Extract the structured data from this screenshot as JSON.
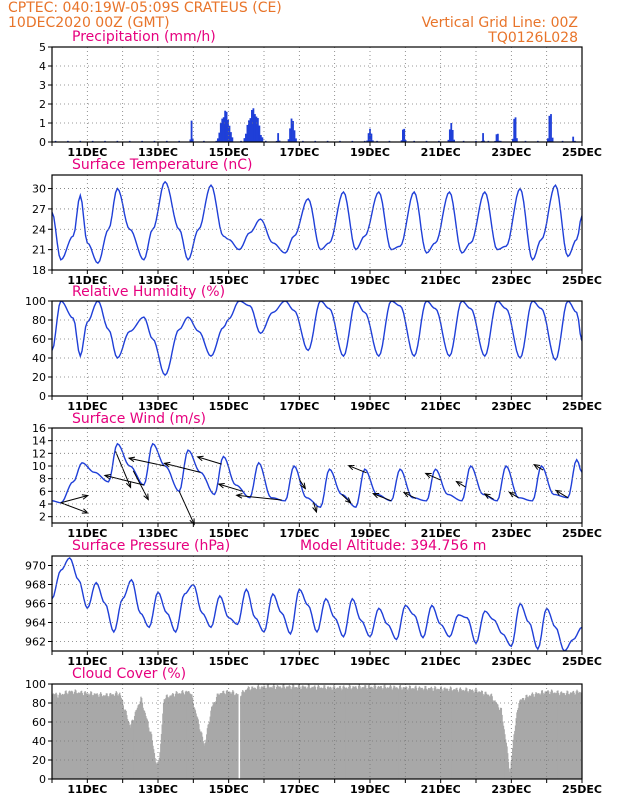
{
  "header": {
    "line1": "CPTEC:   040:19W-05:09S   CRATEUS (CE)",
    "line2": "10DEC2020 00Z (GMT)",
    "right1": "Vertical Grid Line: 00Z",
    "right2": "TQ0126L028"
  },
  "colors": {
    "header": "#e8742a",
    "title": "#e6007e",
    "series": "#1f3fd8",
    "cloud": "#a8a8a8",
    "arrow": "#000000",
    "grid": "#777777"
  },
  "chart_data": [
    {
      "type": "bar",
      "title": "Precipitation (mm/h)",
      "ylim": [
        0,
        5
      ],
      "yticks": [
        0,
        1,
        2,
        3,
        4,
        5
      ],
      "xrange_days": [
        10,
        25
      ],
      "xtick_labels": [
        "11DEC",
        "13DEC",
        "15DEC",
        "17DEC",
        "19DEC",
        "21DEC",
        "23DEC",
        "25DEC"
      ],
      "grid": true,
      "events": [
        {
          "day": 13.95,
          "width": 0.1,
          "peak": 1.2
        },
        {
          "day": 14.9,
          "width": 0.45,
          "peak": 1.7
        },
        {
          "day": 15.7,
          "width": 0.55,
          "peak": 1.8
        },
        {
          "day": 16.4,
          "width": 0.12,
          "peak": 0.5
        },
        {
          "day": 16.8,
          "width": 0.25,
          "peak": 1.3
        },
        {
          "day": 19.0,
          "width": 0.2,
          "peak": 0.7
        },
        {
          "day": 19.95,
          "width": 0.15,
          "peak": 0.8
        },
        {
          "day": 21.3,
          "width": 0.2,
          "peak": 1.0
        },
        {
          "day": 22.2,
          "width": 0.08,
          "peak": 0.5
        },
        {
          "day": 22.6,
          "width": 0.15,
          "peak": 0.5
        },
        {
          "day": 23.1,
          "width": 0.15,
          "peak": 1.5
        },
        {
          "day": 24.1,
          "width": 0.18,
          "peak": 1.7
        },
        {
          "day": 24.75,
          "width": 0.05,
          "peak": 0.3
        }
      ]
    },
    {
      "type": "line",
      "title": "Surface Temperature (nC)",
      "ylim": [
        18,
        32
      ],
      "yticks": [
        18,
        21,
        24,
        27,
        30
      ],
      "xrange_days": [
        10,
        25
      ],
      "xtick_labels": [
        "11DEC",
        "13DEC",
        "15DEC",
        "17DEC",
        "19DEC",
        "21DEC",
        "23DEC",
        "25DEC"
      ],
      "grid": true,
      "series": [
        {
          "x": [
            10,
            10.25,
            10.6,
            10.8,
            11.0,
            11.3,
            11.6,
            11.85,
            12.2,
            12.6,
            12.85,
            13.2,
            13.6,
            13.85,
            14.15,
            14.5,
            14.85,
            15.0,
            15.3,
            15.6,
            15.9,
            16.25,
            16.6,
            16.85,
            17.25,
            17.6,
            17.85,
            18.25,
            18.6,
            18.85,
            19.25,
            19.6,
            19.85,
            20.25,
            20.6,
            20.85,
            21.25,
            21.6,
            21.85,
            22.25,
            22.6,
            22.85,
            23.25,
            23.6,
            23.85,
            24.25,
            24.6,
            24.85,
            25.0
          ],
          "y": [
            26.5,
            19.5,
            23,
            29,
            22,
            19,
            24,
            30,
            24,
            19.5,
            24,
            31,
            24,
            19.5,
            24,
            30.5,
            23,
            22.5,
            21,
            23.5,
            25.5,
            22,
            20.5,
            23,
            28.5,
            21,
            22,
            29.5,
            21,
            23,
            29.5,
            21,
            21.5,
            29.5,
            20.5,
            22,
            29.5,
            20.5,
            22,
            29.5,
            21,
            21.5,
            30,
            19.5,
            22.5,
            30.5,
            20,
            22.5,
            26
          ]
        }
      ]
    },
    {
      "type": "line",
      "title": "Relative Humidity (%)",
      "ylim": [
        0,
        100
      ],
      "yticks": [
        0,
        20,
        40,
        60,
        80,
        100
      ],
      "xrange_days": [
        10,
        25
      ],
      "xtick_labels": [
        "11DEC",
        "13DEC",
        "15DEC",
        "17DEC",
        "19DEC",
        "21DEC",
        "23DEC",
        "25DEC"
      ],
      "grid": true,
      "series": [
        {
          "x": [
            10,
            10.25,
            10.6,
            10.8,
            11.0,
            11.3,
            11.6,
            11.85,
            12.2,
            12.6,
            12.85,
            13.2,
            13.6,
            13.85,
            14.15,
            14.5,
            14.85,
            15.0,
            15.3,
            15.6,
            15.9,
            16.25,
            16.6,
            16.85,
            17.25,
            17.6,
            17.85,
            18.25,
            18.6,
            18.85,
            19.25,
            19.6,
            19.85,
            20.25,
            20.6,
            20.85,
            21.25,
            21.6,
            21.85,
            22.25,
            22.6,
            22.85,
            23.25,
            23.6,
            23.85,
            24.25,
            24.6,
            24.85,
            25.0
          ],
          "y": [
            48,
            100,
            82,
            42,
            78,
            100,
            70,
            40,
            68,
            83,
            60,
            22,
            70,
            83,
            68,
            42,
            72,
            81,
            100,
            95,
            66,
            88,
            100,
            90,
            48,
            100,
            92,
            42,
            100,
            88,
            42,
            100,
            95,
            42,
            100,
            92,
            42,
            100,
            92,
            42,
            100,
            92,
            40,
            100,
            92,
            38,
            100,
            88,
            58
          ]
        }
      ]
    },
    {
      "type": "line",
      "title": "Surface Wind (m/s)",
      "ylim": [
        1,
        16
      ],
      "yticks": [
        2,
        4,
        6,
        8,
        10,
        12,
        14,
        16
      ],
      "xrange_days": [
        10,
        25
      ],
      "xtick_labels": [
        "11DEC",
        "13DEC",
        "15DEC",
        "17DEC",
        "19DEC",
        "21DEC",
        "23DEC",
        "25DEC"
      ],
      "grid": true,
      "series": [
        {
          "x": [
            10,
            10.25,
            10.6,
            10.85,
            11.2,
            11.6,
            11.85,
            12.2,
            12.6,
            12.85,
            13.2,
            13.6,
            13.85,
            14.2,
            14.6,
            14.85,
            15.2,
            15.6,
            15.85,
            16.2,
            16.6,
            16.85,
            17.2,
            17.6,
            17.85,
            18.2,
            18.6,
            18.85,
            19.2,
            19.6,
            19.85,
            20.2,
            20.6,
            20.85,
            21.2,
            21.6,
            21.85,
            22.2,
            22.6,
            22.85,
            23.2,
            23.6,
            23.85,
            24.2,
            24.6,
            24.85,
            25.0
          ],
          "y": [
            4.5,
            4.2,
            7.5,
            10.5,
            9,
            7.5,
            13.5,
            10,
            7,
            13.5,
            10,
            6,
            12.5,
            9,
            5.5,
            11.5,
            7,
            5,
            10.5,
            5,
            4.5,
            10,
            5,
            3.5,
            9.5,
            5.5,
            3.5,
            9.5,
            5.5,
            4.5,
            9.5,
            5,
            4.5,
            9.5,
            5.5,
            4.5,
            10,
            5.5,
            4.5,
            10,
            5,
            4.5,
            10,
            5.5,
            5,
            11,
            9
          ]
        }
      ],
      "wind_vectors": [
        {
          "day": 10.25,
          "dx": 0.9,
          "dy": 1.2
        },
        {
          "day": 10.25,
          "dx": 0.9,
          "dy": -1.7
        },
        {
          "day": 11.8,
          "dx": 0.5,
          "dy": -6
        },
        {
          "day": 12.3,
          "dx": 0.5,
          "dy": -4.8
        },
        {
          "day": 12.6,
          "dx": -1.3,
          "dy": 1.6
        },
        {
          "day": 13.2,
          "dx": -1.2,
          "dy": 1.3
        },
        {
          "day": 13.6,
          "dx": 0.5,
          "dy": -5.5
        },
        {
          "day": 14.2,
          "dx": -1.2,
          "dy": 1.5
        },
        {
          "day": 14.8,
          "dx": -0.8,
          "dy": 1.2
        },
        {
          "day": 15.4,
          "dx": -0.8,
          "dy": 1.2
        },
        {
          "day": 16.5,
          "dx": -1.5,
          "dy": 0.8
        },
        {
          "day": 17.0,
          "dx": 0.2,
          "dy": -1.5
        },
        {
          "day": 17.4,
          "dx": 0.1,
          "dy": -1.6
        },
        {
          "day": 18.2,
          "dx": 0.3,
          "dy": -1.4
        },
        {
          "day": 18.9,
          "dx": -0.6,
          "dy": 1.2
        },
        {
          "day": 19.6,
          "dx": -0.6,
          "dy": 1.2
        },
        {
          "day": 20.3,
          "dx": -0.4,
          "dy": 1.0
        },
        {
          "day": 21.0,
          "dx": -0.5,
          "dy": 1.1
        },
        {
          "day": 21.7,
          "dx": -0.3,
          "dy": 0.9
        },
        {
          "day": 22.5,
          "dx": -0.3,
          "dy": 0.9
        },
        {
          "day": 23.2,
          "dx": -0.3,
          "dy": 0.9
        },
        {
          "day": 23.9,
          "dx": -0.3,
          "dy": 0.9
        },
        {
          "day": 24.6,
          "dx": -0.4,
          "dy": 1.2
        }
      ]
    },
    {
      "type": "line",
      "title": "Surface Pressure (hPa)",
      "subtitle": "Model Altitude: 394.756  m",
      "ylim": [
        961,
        971
      ],
      "yticks": [
        962,
        964,
        966,
        968,
        970
      ],
      "xrange_days": [
        10,
        25
      ],
      "xtick_labels": [
        "11DEC",
        "13DEC",
        "15DEC",
        "17DEC",
        "19DEC",
        "21DEC",
        "23DEC",
        "25DEC"
      ],
      "grid": true,
      "series": [
        {
          "x": [
            10,
            10.25,
            10.5,
            10.75,
            11.0,
            11.25,
            11.5,
            11.75,
            12.0,
            12.25,
            12.5,
            12.75,
            13.0,
            13.25,
            13.5,
            13.75,
            14.0,
            14.25,
            14.5,
            14.75,
            15.0,
            15.25,
            15.5,
            15.75,
            16.0,
            16.25,
            16.5,
            16.75,
            17.0,
            17.25,
            17.5,
            17.75,
            18.0,
            18.25,
            18.5,
            18.75,
            19.0,
            19.25,
            19.5,
            19.75,
            20.0,
            20.25,
            20.5,
            20.75,
            21.0,
            21.25,
            21.5,
            21.75,
            22.0,
            22.25,
            22.5,
            22.75,
            23.0,
            23.25,
            23.5,
            23.75,
            24.0,
            24.25,
            24.5,
            24.75,
            25.0
          ],
          "y": [
            966.5,
            969.5,
            970.8,
            968.5,
            965.5,
            968.2,
            966,
            963,
            966.5,
            968.5,
            965,
            963.5,
            967.2,
            965,
            963,
            967,
            968,
            965,
            963.5,
            966.8,
            964.5,
            963.8,
            967.5,
            964.5,
            963,
            967,
            965,
            962.8,
            967.5,
            965.8,
            963,
            966.5,
            964.5,
            962.5,
            966.5,
            964.2,
            962.5,
            965.5,
            963.8,
            962.2,
            965.8,
            964.8,
            962.4,
            965.8,
            963.8,
            962.5,
            964.8,
            964.5,
            961.8,
            965.2,
            964.3,
            962.8,
            961.5,
            966,
            964,
            961.2,
            965.5,
            963.5,
            961,
            962.2,
            963.5
          ]
        }
      ]
    },
    {
      "type": "bar",
      "title": "Cloud Cover (%)",
      "ylim": [
        0,
        100
      ],
      "yticks": [
        0,
        20,
        40,
        60,
        80,
        100
      ],
      "xrange_days": [
        10,
        25
      ],
      "xtick_labels": [
        "11DEC",
        "13DEC",
        "15DEC",
        "17DEC",
        "19DEC",
        "21DEC",
        "23DEC",
        "25DEC"
      ],
      "grid": true,
      "profile_days": [
        10,
        10.15,
        10.5,
        11.0,
        11.5,
        11.9,
        12.2,
        12.5,
        12.8,
        12.95,
        13.05,
        13.15,
        13.5,
        13.9,
        14.3,
        14.5,
        14.7,
        15.0,
        15.3,
        15.5,
        16.0,
        17.0,
        18.0,
        19.0,
        20.0,
        21.0,
        22.0,
        22.4,
        22.7,
        22.85,
        22.95,
        23.05,
        23.2,
        23.5,
        24.0,
        24.5,
        25.0
      ],
      "profile_values": [
        90,
        88,
        92,
        90,
        88,
        90,
        55,
        85,
        45,
        12,
        30,
        85,
        90,
        92,
        35,
        75,
        90,
        92,
        88,
        95,
        97,
        97,
        96,
        97,
        96,
        95,
        93,
        88,
        72,
        35,
        5,
        45,
        82,
        88,
        92,
        90,
        92
      ]
    }
  ]
}
